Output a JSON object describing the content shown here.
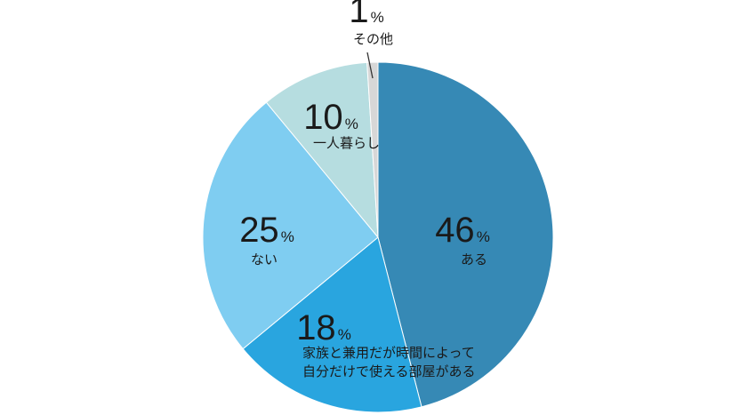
{
  "chart_data": {
    "type": "pie",
    "title": "",
    "start_angle_deg": 0,
    "direction": "clockwise",
    "slices": [
      {
        "value": 46,
        "pct_label": "46",
        "label_lines": [
          "ある"
        ],
        "color": "#3689b5"
      },
      {
        "value": 18,
        "pct_label": "18",
        "label_lines": [
          "家族と兼用だが時間によって",
          "自分だけで使える部屋がある"
        ],
        "color": "#29a5df"
      },
      {
        "value": 25,
        "pct_label": "25",
        "label_lines": [
          "ない"
        ],
        "color": "#7fcdf1"
      },
      {
        "value": 10,
        "pct_label": "10",
        "label_lines": [
          "一人暮らし"
        ],
        "color": "#b6dde0"
      },
      {
        "value": 1,
        "pct_label": "1",
        "label_lines": [
          "その他"
        ],
        "color": "#d7d7d7"
      }
    ],
    "percent_symbol": "%"
  }
}
